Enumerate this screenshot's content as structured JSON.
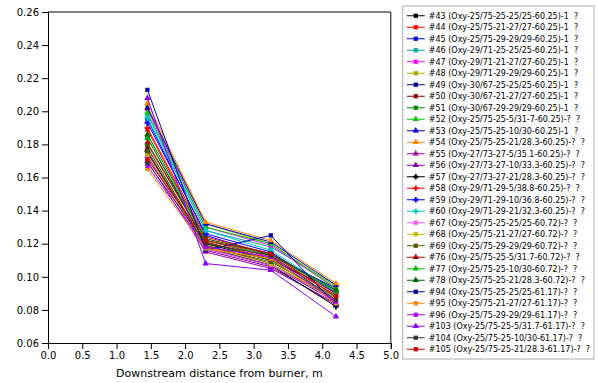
{
  "chart_data": {
    "type": "line",
    "x_label": "Downstream distance from burner, m",
    "xlim": [
      0.0,
      5.0
    ],
    "ylim": [
      0.06,
      0.26
    ],
    "xticks": [
      {
        "value": 0.0,
        "label": "0.0"
      },
      0.5,
      {
        "value": 1.0,
        "label": "1.0"
      },
      1.5,
      {
        "value": 2.0,
        "label": "2.0"
      },
      2.5,
      {
        "value": 3.0,
        "label": "3.0"
      },
      3.5,
      {
        "value": 4.0,
        "label": "4.0"
      },
      4.5,
      {
        "value": 5.0,
        "label": "5.0"
      }
    ],
    "yticks": [
      0.06,
      0.08,
      {
        "value": 0.1,
        "label": "0.10"
      },
      0.12,
      0.14,
      0.16,
      0.18,
      {
        "value": 0.2,
        "label": "0.20"
      },
      0.22,
      0.24,
      0.26
    ],
    "grid": false,
    "legend": "right",
    "x": [
      1.45,
      2.3,
      3.25,
      4.2
    ],
    "series": [
      {
        "name": "#43 (Oxy-25/75-25-25/25-60.25)-1  ?",
        "color": "#000000",
        "marker": "square",
        "values": [
          0.184,
          0.12,
          0.11,
          0.092
        ]
      },
      {
        "name": "#44 (Oxy-25/75-21-27/27-60.25)-1  ?",
        "color": "#FF0000",
        "marker": "square",
        "values": [
          0.189,
          0.122,
          0.112,
          0.09
        ]
      },
      {
        "name": "#45 (Oxy-25/75-29-29/29-60.25)-1  ?",
        "color": "#0000FF",
        "marker": "square",
        "values": [
          0.195,
          0.125,
          0.113,
          0.093
        ]
      },
      {
        "name": "#46 (Oxy-29/71-25-25/25-60.25)-1  ?",
        "color": "#00AAAA",
        "marker": "square",
        "values": [
          0.198,
          0.128,
          0.118,
          0.095
        ]
      },
      {
        "name": "#47 (Oxy-29/71-21-27/27-60.25)-1  ?",
        "color": "#FF00FF",
        "marker": "square",
        "values": [
          0.201,
          0.13,
          0.119,
          0.093
        ]
      },
      {
        "name": "#48 (Oxy-29/71-29-29/29-60.25)-1  ?",
        "color": "#AAAA00",
        "marker": "square",
        "values": [
          0.203,
          0.132,
          0.12,
          0.094
        ]
      },
      {
        "name": "#49 (Oxy-30/67-25-25/25-60.25)-1  ?",
        "color": "#000088",
        "marker": "square",
        "values": [
          0.175,
          0.118,
          0.107,
          0.085
        ]
      },
      {
        "name": "#50 (Oxy-30/67-21-27/27-60.25)-1  ?",
        "color": "#880000",
        "marker": "square",
        "values": [
          0.178,
          0.119,
          0.108,
          0.086
        ]
      },
      {
        "name": "#51 (Oxy-30/67-29-29/29-60.25)-1  ?",
        "color": "#008800",
        "marker": "square",
        "values": [
          0.18,
          0.121,
          0.11,
          0.087
        ]
      },
      {
        "name": "#52 (Oxy-25/75-25-5/31-7-60.25)-?  ?",
        "color": "#00CC00",
        "marker": "triangle",
        "values": [
          0.199,
          0.13,
          0.12,
          0.093
        ]
      },
      {
        "name": "#53 (Oxy-25/75-25-10/30-60.25)-1  ?",
        "color": "#0000CC",
        "marker": "triangle",
        "values": [
          0.202,
          0.132,
          0.121,
          0.095
        ]
      },
      {
        "name": "#54 (Oxy-25/75-25-21/28.3-60.25)-?  ?",
        "color": "#FF8800",
        "marker": "triangle",
        "values": [
          0.205,
          0.133,
          0.122,
          0.096
        ]
      },
      {
        "name": "#55 (Oxy-27/73-27-5/35.1-60.25)-?  ?",
        "color": "#AA00AA",
        "marker": "triangle",
        "values": [
          0.17,
          0.115,
          0.105,
          0.084
        ]
      },
      {
        "name": "#56 (Oxy-27/73-27-10/33.3-60.25)-?  ?",
        "color": "#8800AA",
        "marker": "triangle",
        "values": [
          0.173,
          0.116,
          0.106,
          0.083
        ]
      },
      {
        "name": "#57 (Oxy-27/73-27-21/28.3-60.25)-?  ?",
        "color": "#000000",
        "marker": "plus",
        "values": [
          0.176,
          0.117,
          0.107,
          0.082
        ]
      },
      {
        "name": "#58 (Oxy-29/71-29-5/38.8-60.25)-?  ?",
        "color": "#FF0000",
        "marker": "plus",
        "values": [
          0.19,
          0.124,
          0.114,
          0.091
        ]
      },
      {
        "name": "#59 (Oxy-29/71-29-10/36.8-60.25)-?  ?",
        "color": "#0000FF",
        "marker": "plus",
        "values": [
          0.193,
          0.126,
          0.115,
          0.09
        ]
      },
      {
        "name": "#60 (Oxy-29/71-29-21/32.3-60.25)-?  ?",
        "color": "#00CCCC",
        "marker": "plus",
        "values": [
          0.196,
          0.128,
          0.116,
          0.091
        ]
      },
      {
        "name": "#67 (Oxy-25/75-25-25/25-60.72)-?  ?",
        "color": "#FF55FF",
        "marker": "square",
        "values": [
          0.172,
          0.117,
          0.107,
          0.086
        ]
      },
      {
        "name": "#68 (Oxy-25/75-21-27/27-60.72)-?  ?",
        "color": "#BBBB00",
        "marker": "square",
        "values": [
          0.174,
          0.118,
          0.108,
          0.087
        ]
      },
      {
        "name": "#69 (Oxy-25/75-29-29/29-60.72)-?  ?",
        "color": "#555500",
        "marker": "square",
        "values": [
          0.176,
          0.119,
          0.109,
          0.088
        ]
      },
      {
        "name": "#76 (Oxy-25/75-25-5/31.7-60.72)-?  ?",
        "color": "#BB0000",
        "marker": "triangle",
        "values": [
          0.181,
          0.121,
          0.111,
          0.089
        ]
      },
      {
        "name": "#77 (Oxy-25/75-25-10/30-60.72)-?  ?",
        "color": "#00BB00",
        "marker": "triangle",
        "values": [
          0.184,
          0.122,
          0.113,
          0.091
        ]
      },
      {
        "name": "#78 (Oxy-25/75-25-21/28.3-60.72)-?  ?",
        "color": "#006600",
        "marker": "triangle",
        "values": [
          0.186,
          0.123,
          0.114,
          0.092
        ]
      },
      {
        "name": "#94 (Oxy-25/75-25-25/25-61.17)-?  ?",
        "color": "#0000AA",
        "marker": "square",
        "values": [
          0.213,
          0.116,
          0.125,
          0.083
        ]
      },
      {
        "name": "#95 (Oxy-25/75-21-27/27-61.17)-?  ?",
        "color": "#FF8800",
        "marker": "square",
        "values": [
          0.165,
          0.117,
          0.111,
          0.084
        ]
      },
      {
        "name": "#96 (Oxy-25/75-29-29/29-61.17)-?  ?",
        "color": "#AA00FF",
        "marker": "square",
        "values": [
          0.167,
          0.118,
          0.112,
          0.085
        ]
      },
      {
        "name": "#103 (Oxy-25/75-25-5/31.7-61.17)-?  ?",
        "color": "#8800FF",
        "marker": "triangle",
        "values": [
          0.208,
          0.108,
          0.104,
          0.076
        ]
      },
      {
        "name": "#104 (Oxy-25/75-25-10/30-61.17)-?  ?",
        "color": "#333333",
        "marker": "square",
        "values": [
          0.169,
          0.12,
          0.113,
          0.086
        ]
      },
      {
        "name": "#105 (Oxy-25/75-25-21/28.3-61.17)-?  ?",
        "color": "#CC0000",
        "marker": "square",
        "values": [
          0.171,
          0.122,
          0.114,
          0.088
        ]
      }
    ]
  }
}
